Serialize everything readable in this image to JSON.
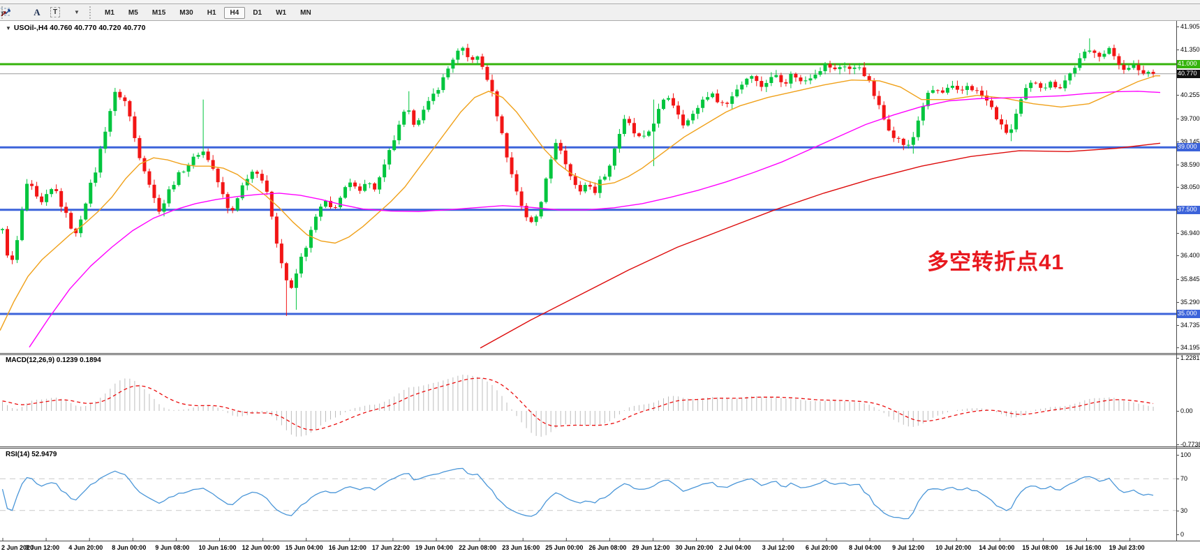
{
  "toolbar": {
    "tools": [
      {
        "name": "fibonacci",
        "glyph": "F"
      },
      {
        "name": "text",
        "glyph": "A"
      },
      {
        "name": "text-label",
        "glyph": "T"
      },
      {
        "name": "arrows",
        "glyph": "arrows"
      }
    ],
    "timeframes": [
      "M1",
      "M5",
      "M15",
      "M30",
      "H1",
      "H4",
      "D1",
      "W1",
      "MN"
    ],
    "active_timeframe": "H4"
  },
  "chart": {
    "symbol_title": "USOil-,H4  40.760 40.770 40.720 40.770",
    "annotation": "多空转折点41",
    "annotation_color": "#e8191f"
  },
  "macd_panel": {
    "label": "MACD(12,26,9) 0.1239 0.1894",
    "ticks": [
      "1.2281",
      "0.00",
      "-0.7738"
    ]
  },
  "rsi_panel": {
    "label": "RSI(14) 52.9479",
    "ticks": [
      "100",
      "70",
      "30",
      "0"
    ]
  },
  "chart_data": {
    "type": "candlestick",
    "symbol": "USOil",
    "timeframe": "H4",
    "ohlc": {
      "open": "40.760",
      "high": "40.770",
      "low": "40.720",
      "close": "40.770"
    },
    "price_axis": {
      "min": 34.195,
      "max": 41.905,
      "ticks": [
        41.905,
        41.35,
        40.255,
        39.7,
        39.145,
        38.59,
        38.05,
        36.94,
        36.4,
        35.845,
        35.29,
        34.735,
        34.195
      ]
    },
    "levels": [
      {
        "value": 41.0,
        "label": "41.000",
        "color": "#35b30c",
        "width": 3,
        "label_bg": "#35b30c"
      },
      {
        "value": 40.77,
        "label": "40.770",
        "color": "#9a9a9a",
        "width": 1,
        "label_bg": "#111111"
      },
      {
        "value": 39.0,
        "label": "39.000",
        "color": "#3c63da",
        "width": 3,
        "label_bg": "#3c63da"
      },
      {
        "value": 37.5,
        "label": "37.500",
        "color": "#3c63da",
        "width": 3,
        "label_bg": "#3c63da"
      },
      {
        "value": 35.0,
        "label": "35.000",
        "color": "#3c63da",
        "width": 3,
        "label_bg": "#3c63da"
      }
    ],
    "time_labels": [
      "2 Jun 2020",
      "3 Jun 12:00",
      "4 Jun 20:00",
      "8 Jun 00:00",
      "9 Jun 08:00",
      "10 Jun 16:00",
      "12 Jun 00:00",
      "15 Jun 04:00",
      "16 Jun 12:00",
      "17 Jun 22:00",
      "19 Jun 04:00",
      "22 Jun 08:00",
      "23 Jun 16:00",
      "25 Jun 00:00",
      "26 Jun 08:00",
      "29 Jun 12:00",
      "30 Jun 20:00",
      "2 Jul 04:00",
      "3 Jul 12:00",
      "6 Jul 20:00",
      "8 Jul 04:00",
      "9 Jul 12:00",
      "10 Jul 20:00",
      "14 Jul 00:00",
      "15 Jul 08:00",
      "16 Jul 16:00",
      "19 Jul 23:00"
    ],
    "price_path": [
      [
        0,
        37.3
      ],
      [
        8,
        36.6
      ],
      [
        16,
        36.15
      ],
      [
        24,
        36.7
      ],
      [
        32,
        37.5
      ],
      [
        40,
        38.25
      ],
      [
        48,
        37.9
      ],
      [
        58,
        37.6
      ],
      [
        68,
        37.85
      ],
      [
        78,
        38.05
      ],
      [
        88,
        37.6
      ],
      [
        98,
        37.25
      ],
      [
        108,
        36.85
      ],
      [
        118,
        37.45
      ],
      [
        128,
        38.0
      ],
      [
        138,
        38.5
      ],
      [
        148,
        39.25
      ],
      [
        158,
        39.9
      ],
      [
        166,
        40.35
      ],
      [
        174,
        40.2
      ],
      [
        182,
        40.05
      ],
      [
        190,
        39.4
      ],
      [
        200,
        38.8
      ],
      [
        210,
        38.35
      ],
      [
        220,
        37.8
      ],
      [
        230,
        37.45
      ],
      [
        240,
        37.9
      ],
      [
        252,
        38.25
      ],
      [
        264,
        38.5
      ],
      [
        276,
        38.7
      ],
      [
        288,
        38.95
      ],
      [
        296,
        38.8
      ],
      [
        306,
        38.45
      ],
      [
        318,
        37.9
      ],
      [
        330,
        37.35
      ],
      [
        342,
        37.9
      ],
      [
        354,
        38.3
      ],
      [
        366,
        38.5
      ],
      [
        378,
        38.15
      ],
      [
        388,
        37.5
      ],
      [
        398,
        36.6
      ],
      [
        408,
        35.9
      ],
      [
        418,
        35.55
      ],
      [
        428,
        36.2
      ],
      [
        440,
        36.7
      ],
      [
        452,
        37.3
      ],
      [
        464,
        37.7
      ],
      [
        476,
        37.5
      ],
      [
        488,
        37.8
      ],
      [
        500,
        38.15
      ],
      [
        512,
        37.95
      ],
      [
        524,
        38.2
      ],
      [
        536,
        38.0
      ],
      [
        548,
        38.4
      ],
      [
        560,
        39.0
      ],
      [
        572,
        39.5
      ],
      [
        582,
        39.95
      ],
      [
        592,
        39.6
      ],
      [
        602,
        39.75
      ],
      [
        612,
        40.0
      ],
      [
        622,
        40.3
      ],
      [
        632,
        40.55
      ],
      [
        642,
        40.9
      ],
      [
        652,
        41.25
      ],
      [
        662,
        41.35
      ],
      [
        672,
        41.1
      ],
      [
        682,
        41.2
      ],
      [
        692,
        40.9
      ],
      [
        702,
        40.5
      ],
      [
        712,
        39.8
      ],
      [
        722,
        39.1
      ],
      [
        732,
        38.4
      ],
      [
        742,
        37.85
      ],
      [
        752,
        37.4
      ],
      [
        762,
        37.15
      ],
      [
        772,
        37.45
      ],
      [
        782,
        38.3
      ],
      [
        792,
        38.95
      ],
      [
        800,
        39.15
      ],
      [
        810,
        38.6
      ],
      [
        820,
        38.2
      ],
      [
        830,
        37.95
      ],
      [
        840,
        38.15
      ],
      [
        850,
        37.9
      ],
      [
        860,
        38.2
      ],
      [
        872,
        38.5
      ],
      [
        884,
        39.2
      ],
      [
        896,
        39.7
      ],
      [
        908,
        39.35
      ],
      [
        920,
        39.15
      ],
      [
        932,
        39.45
      ],
      [
        944,
        39.9
      ],
      [
        956,
        40.25
      ],
      [
        968,
        39.95
      ],
      [
        980,
        39.55
      ],
      [
        992,
        39.75
      ],
      [
        1004,
        40.1
      ],
      [
        1016,
        40.3
      ],
      [
        1028,
        40.15
      ],
      [
        1040,
        40.0
      ],
      [
        1052,
        40.35
      ],
      [
        1064,
        40.55
      ],
      [
        1076,
        40.8
      ],
      [
        1088,
        40.45
      ],
      [
        1100,
        40.6
      ],
      [
        1112,
        40.75
      ],
      [
        1124,
        40.55
      ],
      [
        1136,
        40.8
      ],
      [
        1148,
        40.55
      ],
      [
        1160,
        40.7
      ],
      [
        1172,
        40.85
      ],
      [
        1184,
        41.0
      ],
      [
        1196,
        40.85
      ],
      [
        1208,
        41.0
      ],
      [
        1220,
        40.85
      ],
      [
        1232,
        40.95
      ],
      [
        1244,
        40.6
      ],
      [
        1256,
        40.1
      ],
      [
        1268,
        39.6
      ],
      [
        1280,
        39.3
      ],
      [
        1292,
        39.1
      ],
      [
        1304,
        39.0
      ],
      [
        1316,
        39.7
      ],
      [
        1326,
        40.2
      ],
      [
        1338,
        40.4
      ],
      [
        1350,
        40.3
      ],
      [
        1362,
        40.45
      ],
      [
        1374,
        40.3
      ],
      [
        1386,
        40.5
      ],
      [
        1398,
        40.35
      ],
      [
        1410,
        40.2
      ],
      [
        1422,
        39.9
      ],
      [
        1434,
        39.5
      ],
      [
        1446,
        39.3
      ],
      [
        1458,
        39.9
      ],
      [
        1470,
        40.4
      ],
      [
        1482,
        40.6
      ],
      [
        1494,
        40.45
      ],
      [
        1506,
        40.55
      ],
      [
        1518,
        40.45
      ],
      [
        1530,
        40.7
      ],
      [
        1542,
        41.0
      ],
      [
        1554,
        41.25
      ],
      [
        1566,
        41.35
      ],
      [
        1578,
        41.2
      ],
      [
        1590,
        41.35
      ],
      [
        1602,
        41.05
      ],
      [
        1614,
        40.85
      ],
      [
        1626,
        40.95
      ],
      [
        1638,
        40.78
      ],
      [
        1646,
        40.82
      ],
      [
        1652,
        40.77
      ]
    ],
    "spikes": [
      {
        "i": 41,
        "high": 40.15
      },
      {
        "i": 58,
        "low": 34.95
      },
      {
        "i": 60,
        "low": 35.1
      },
      {
        "i": 83,
        "high": 40.35
      },
      {
        "i": 133,
        "high": 40.15,
        "low": 38.55
      },
      {
        "i": 186,
        "low": 38.85
      },
      {
        "i": 206,
        "low": 39.15
      },
      {
        "i": 222,
        "high": 41.62
      }
    ],
    "moving_averages": [
      {
        "name": "fast",
        "color": "#f0a11a",
        "points": [
          [
            0,
            34.6
          ],
          [
            20,
            35.3
          ],
          [
            40,
            35.9
          ],
          [
            60,
            36.3
          ],
          [
            80,
            36.6
          ],
          [
            100,
            36.9
          ],
          [
            120,
            37.15
          ],
          [
            140,
            37.45
          ],
          [
            160,
            37.8
          ],
          [
            180,
            38.25
          ],
          [
            200,
            38.6
          ],
          [
            220,
            38.75
          ],
          [
            240,
            38.7
          ],
          [
            260,
            38.6
          ],
          [
            280,
            38.55
          ],
          [
            300,
            38.55
          ],
          [
            320,
            38.5
          ],
          [
            340,
            38.35
          ],
          [
            360,
            38.1
          ],
          [
            380,
            37.85
          ],
          [
            400,
            37.55
          ],
          [
            420,
            37.2
          ],
          [
            440,
            36.9
          ],
          [
            460,
            36.75
          ],
          [
            480,
            36.7
          ],
          [
            500,
            36.85
          ],
          [
            520,
            37.1
          ],
          [
            540,
            37.4
          ],
          [
            560,
            37.7
          ],
          [
            580,
            38.05
          ],
          [
            600,
            38.5
          ],
          [
            620,
            38.95
          ],
          [
            640,
            39.4
          ],
          [
            660,
            39.85
          ],
          [
            680,
            40.2
          ],
          [
            700,
            40.35
          ],
          [
            720,
            40.2
          ],
          [
            740,
            39.85
          ],
          [
            760,
            39.4
          ],
          [
            780,
            38.95
          ],
          [
            800,
            38.6
          ],
          [
            820,
            38.35
          ],
          [
            840,
            38.2
          ],
          [
            860,
            38.1
          ],
          [
            880,
            38.15
          ],
          [
            900,
            38.3
          ],
          [
            920,
            38.5
          ],
          [
            940,
            38.75
          ],
          [
            960,
            39.0
          ],
          [
            980,
            39.25
          ],
          [
            1000,
            39.45
          ],
          [
            1020,
            39.65
          ],
          [
            1040,
            39.85
          ],
          [
            1060,
            40.0
          ],
          [
            1080,
            40.1
          ],
          [
            1100,
            40.2
          ],
          [
            1140,
            40.35
          ],
          [
            1180,
            40.5
          ],
          [
            1220,
            40.62
          ],
          [
            1260,
            40.6
          ],
          [
            1290,
            40.45
          ],
          [
            1320,
            40.15
          ],
          [
            1360,
            40.15
          ],
          [
            1400,
            40.25
          ],
          [
            1440,
            40.18
          ],
          [
            1480,
            40.05
          ],
          [
            1520,
            39.97
          ],
          [
            1560,
            40.05
          ],
          [
            1600,
            40.35
          ],
          [
            1630,
            40.58
          ],
          [
            1655,
            40.72
          ],
          [
            1662,
            40.72
          ]
        ]
      },
      {
        "name": "medium",
        "color": "#ff00ff",
        "points": [
          [
            42,
            34.2
          ],
          [
            70,
            34.9
          ],
          [
            100,
            35.6
          ],
          [
            130,
            36.15
          ],
          [
            160,
            36.6
          ],
          [
            190,
            37.0
          ],
          [
            220,
            37.3
          ],
          [
            250,
            37.5
          ],
          [
            280,
            37.65
          ],
          [
            310,
            37.75
          ],
          [
            340,
            37.82
          ],
          [
            370,
            37.87
          ],
          [
            400,
            37.9
          ],
          [
            430,
            37.85
          ],
          [
            460,
            37.75
          ],
          [
            490,
            37.62
          ],
          [
            520,
            37.52
          ],
          [
            560,
            37.47
          ],
          [
            600,
            37.46
          ],
          [
            640,
            37.5
          ],
          [
            680,
            37.55
          ],
          [
            720,
            37.6
          ],
          [
            760,
            37.56
          ],
          [
            800,
            37.5
          ],
          [
            840,
            37.5
          ],
          [
            880,
            37.55
          ],
          [
            920,
            37.65
          ],
          [
            960,
            37.8
          ],
          [
            1000,
            37.97
          ],
          [
            1040,
            38.17
          ],
          [
            1080,
            38.4
          ],
          [
            1120,
            38.65
          ],
          [
            1160,
            38.95
          ],
          [
            1200,
            39.25
          ],
          [
            1240,
            39.55
          ],
          [
            1280,
            39.78
          ],
          [
            1320,
            39.98
          ],
          [
            1360,
            40.12
          ],
          [
            1400,
            40.17
          ],
          [
            1440,
            40.19
          ],
          [
            1480,
            40.21
          ],
          [
            1520,
            40.24
          ],
          [
            1560,
            40.3
          ],
          [
            1600,
            40.34
          ],
          [
            1630,
            40.35
          ],
          [
            1662,
            40.32
          ]
        ]
      },
      {
        "name": "slow",
        "color": "#dd0b0b",
        "points": [
          [
            688,
            34.18
          ],
          [
            760,
            34.85
          ],
          [
            830,
            35.45
          ],
          [
            900,
            36.05
          ],
          [
            970,
            36.6
          ],
          [
            1040,
            37.05
          ],
          [
            1110,
            37.5
          ],
          [
            1180,
            37.9
          ],
          [
            1250,
            38.25
          ],
          [
            1320,
            38.55
          ],
          [
            1390,
            38.78
          ],
          [
            1460,
            38.92
          ],
          [
            1530,
            38.9
          ],
          [
            1600,
            38.98
          ],
          [
            1662,
            39.1
          ]
        ]
      }
    ],
    "macd": {
      "params": "12,26,9",
      "histogram_color": "#bcbcbc",
      "signal_color": "#ea0c0c",
      "last_macd": 0.1239,
      "last_signal": 0.1894,
      "scale_ticks": [
        1.2281,
        0.0,
        -0.7738
      ]
    },
    "rsi": {
      "period": 14,
      "last": 52.9479,
      "color": "#4a96d8",
      "levels": [
        70,
        30
      ],
      "range": [
        0,
        100
      ]
    },
    "colors": {
      "bull": "#00c53e",
      "bear": "#f21515"
    }
  }
}
